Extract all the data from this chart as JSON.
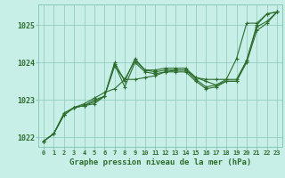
{
  "xlabel": "Graphe pression niveau de la mer (hPa)",
  "bg_color": "#c8eee8",
  "plot_bg_color": "#c8eee8",
  "grid_color": "#88c8b8",
  "line_color": "#2d6e2d",
  "marker_color": "#2d6e2d",
  "xlim": [
    -0.5,
    23.5
  ],
  "ylim": [
    1021.75,
    1025.55
  ],
  "xticks": [
    0,
    1,
    2,
    3,
    4,
    5,
    6,
    7,
    8,
    9,
    10,
    11,
    12,
    13,
    14,
    15,
    16,
    17,
    18,
    19,
    20,
    21,
    22,
    23
  ],
  "yticks": [
    1022,
    1023,
    1024,
    1025
  ],
  "series": [
    [
      1021.9,
      1022.1,
      1022.6,
      1022.8,
      1022.85,
      1022.9,
      1023.1,
      1023.9,
      1023.55,
      1024.05,
      1023.8,
      1023.8,
      1023.85,
      1023.85,
      1023.85,
      1023.6,
      1023.5,
      1023.4,
      1023.55,
      1023.55,
      1024.05,
      1025.0,
      1025.3,
      1025.35
    ],
    [
      1021.9,
      1022.1,
      1022.6,
      1022.8,
      1022.85,
      1023.0,
      1023.1,
      1023.95,
      1023.35,
      1024.0,
      1023.75,
      1023.7,
      1023.75,
      1023.75,
      1023.75,
      1023.5,
      1023.3,
      1023.35,
      1023.5,
      1023.5,
      1024.0,
      1024.85,
      1025.05,
      1025.35
    ],
    [
      1021.9,
      1022.1,
      1022.6,
      1022.8,
      1022.85,
      1022.95,
      1023.1,
      1024.0,
      1023.5,
      1024.1,
      1023.8,
      1023.75,
      1023.8,
      1023.8,
      1023.8,
      1023.55,
      1023.35,
      1023.4,
      1023.5,
      1023.5,
      1024.05,
      1024.95,
      1025.1,
      1025.35
    ],
    [
      1021.9,
      1022.1,
      1022.65,
      1022.8,
      1022.9,
      1023.05,
      1023.2,
      1023.3,
      1023.55,
      1023.55,
      1023.6,
      1023.65,
      1023.75,
      1023.8,
      1023.8,
      1023.6,
      1023.55,
      1023.55,
      1023.55,
      1024.1,
      1025.05,
      1025.05,
      1025.3,
      1025.35
    ]
  ]
}
